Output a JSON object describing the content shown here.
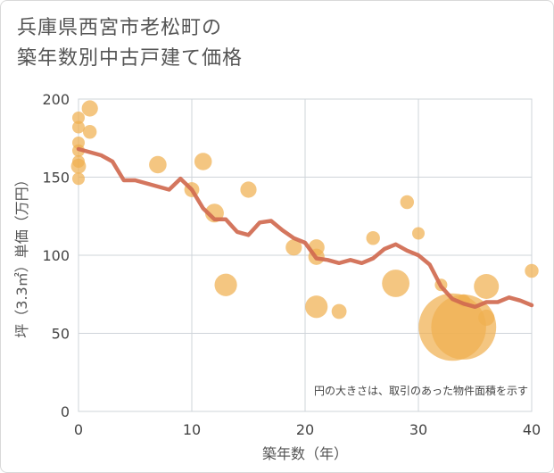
{
  "title_lines": [
    "兵庫県西宮市老松町の",
    "築年数別中古戸建て価格"
  ],
  "chart_data": {
    "type": "scatter",
    "title": "兵庫県西宮市老松町の築年数別中古戸建て価格",
    "xlabel": "築年数（年）",
    "ylabel": "坪（3.3㎡）単価（万円）",
    "xlim": [
      0,
      40
    ],
    "ylim": [
      0,
      200
    ],
    "xticks": [
      "0",
      "10",
      "20",
      "30",
      "40"
    ],
    "yticks": [
      "0",
      "50",
      "100",
      "150",
      "200"
    ],
    "grid": true,
    "note": "円の大きさは、取引のあった物件面積を示す",
    "bubble_color": "#f0b050",
    "line_color": "#d06a50",
    "points": [
      {
        "x": 0,
        "y": 188,
        "s": 1
      },
      {
        "x": 0,
        "y": 182,
        "s": 1
      },
      {
        "x": 0,
        "y": 172,
        "s": 1
      },
      {
        "x": 0,
        "y": 167,
        "s": 1
      },
      {
        "x": 0,
        "y": 160,
        "s": 1
      },
      {
        "x": 0,
        "y": 157,
        "s": 1.2
      },
      {
        "x": 0,
        "y": 149,
        "s": 1
      },
      {
        "x": 1,
        "y": 194,
        "s": 1.3
      },
      {
        "x": 1,
        "y": 179,
        "s": 1.1
      },
      {
        "x": 7,
        "y": 158,
        "s": 1.4
      },
      {
        "x": 10,
        "y": 142,
        "s": 1.2
      },
      {
        "x": 11,
        "y": 160,
        "s": 1.4
      },
      {
        "x": 12,
        "y": 127,
        "s": 1.5
      },
      {
        "x": 13,
        "y": 81,
        "s": 1.8
      },
      {
        "x": 15,
        "y": 142,
        "s": 1.3
      },
      {
        "x": 19,
        "y": 105,
        "s": 1.3
      },
      {
        "x": 21,
        "y": 105,
        "s": 1.3
      },
      {
        "x": 21,
        "y": 99,
        "s": 1.3
      },
      {
        "x": 21,
        "y": 67,
        "s": 1.8
      },
      {
        "x": 23,
        "y": 64,
        "s": 1.2
      },
      {
        "x": 26,
        "y": 111,
        "s": 1.1
      },
      {
        "x": 28,
        "y": 82,
        "s": 2.2
      },
      {
        "x": 29,
        "y": 134,
        "s": 1.1
      },
      {
        "x": 30,
        "y": 114,
        "s": 1
      },
      {
        "x": 32,
        "y": 81,
        "s": 1
      },
      {
        "x": 33,
        "y": 54,
        "s": 5.4
      },
      {
        "x": 34,
        "y": 54,
        "s": 5.2
      },
      {
        "x": 34,
        "y": 71,
        "s": 1
      },
      {
        "x": 36,
        "y": 80,
        "s": 2
      },
      {
        "x": 36,
        "y": 60,
        "s": 1.3
      },
      {
        "x": 40,
        "y": 90,
        "s": 1.1
      }
    ],
    "series": [
      {
        "name": "trend",
        "x": [
          0,
          1,
          2,
          3,
          4,
          5,
          6,
          7,
          8,
          9,
          10,
          11,
          12,
          13,
          14,
          15,
          16,
          17,
          18,
          19,
          20,
          21,
          22,
          23,
          24,
          25,
          26,
          27,
          28,
          29,
          30,
          31,
          32,
          33,
          34,
          35,
          36,
          37,
          38,
          39,
          40
        ],
        "values": [
          168,
          166,
          164,
          160,
          148,
          148,
          146,
          144,
          142,
          149,
          142,
          130,
          123,
          123,
          115,
          113,
          121,
          122,
          116,
          111,
          108,
          98,
          97,
          95,
          97,
          95,
          98,
          104,
          107,
          103,
          100,
          94,
          80,
          72,
          69,
          67,
          70,
          70,
          73,
          71,
          68
        ]
      }
    ]
  }
}
